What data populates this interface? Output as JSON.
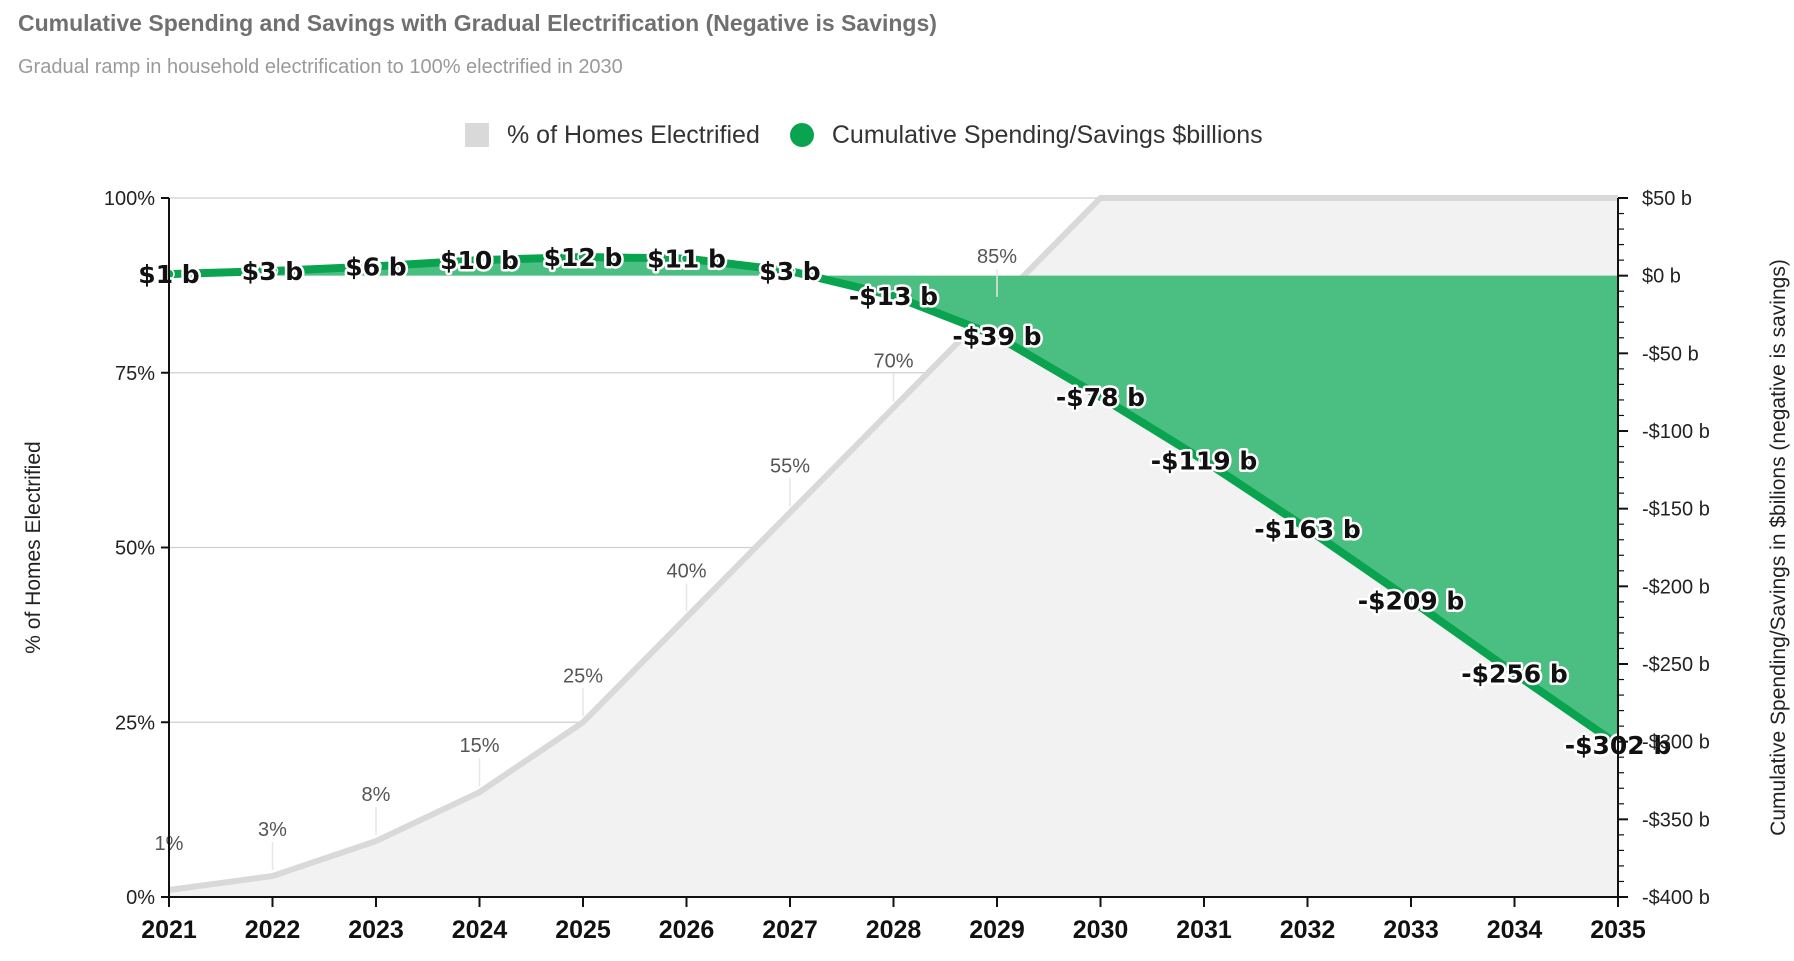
{
  "header": {
    "title": "Cumulative Spending and Savings with Gradual Electrification (Negative is Savings)",
    "subtitle": "Gradual ramp in household electrification to 100% electrified in 2030"
  },
  "legend": [
    {
      "name": "% of Homes Electrified",
      "color": "#d9d9d9",
      "shape": "square"
    },
    {
      "name": "Cumulative Spending/Savings $billions",
      "color": "#0aa350",
      "shape": "circle"
    }
  ],
  "chart_data": {
    "type": "area",
    "categories": [
      "2021",
      "2022",
      "2023",
      "2024",
      "2025",
      "2026",
      "2027",
      "2028",
      "2029",
      "2030",
      "2031",
      "2032",
      "2033",
      "2034",
      "2035"
    ],
    "series": [
      {
        "name": "% of Homes Electrified",
        "axis": "left",
        "type": "area",
        "color": "#d9d9d9",
        "values": [
          1,
          3,
          8,
          15,
          25,
          40,
          55,
          70,
          85,
          100,
          100,
          100,
          100,
          100,
          100
        ],
        "value_labels": [
          "1%",
          "3%",
          "8%",
          "15%",
          "25%",
          "40%",
          "55%",
          "70%",
          "85%",
          null,
          null,
          null,
          null,
          null,
          null
        ]
      },
      {
        "name": "Cumulative Spending/Savings $billions",
        "axis": "right",
        "type": "area",
        "color": "#0aa350",
        "values": [
          1,
          3,
          6,
          10,
          12,
          11,
          3,
          -13,
          -39,
          -78,
          -119,
          -163,
          -209,
          -256,
          -302
        ],
        "value_labels": [
          "$1 b",
          "$3 b",
          "$6 b",
          "$10 b",
          "$12 b",
          "$11 b",
          "$3 b",
          "-$13 b",
          "-$39 b",
          "-$78 b",
          "-$119 b",
          "-$163 b",
          "-$209 b",
          "-$256 b",
          "-$302 b"
        ]
      }
    ],
    "y_left": {
      "label": "% of Homes Electrified",
      "range": [
        0,
        100
      ],
      "ticks": [
        0,
        25,
        50,
        75,
        100
      ],
      "tick_labels": [
        "0%",
        "25%",
        "50%",
        "75%",
        "100%"
      ]
    },
    "y_right": {
      "label": "Cumulative Spending/Savings in $bilions (negative is savings)",
      "range": [
        -400,
        50
      ],
      "ticks": [
        50,
        0,
        -50,
        -100,
        -150,
        -200,
        -250,
        -300,
        -350,
        -400
      ],
      "tick_labels": [
        "$50 b",
        "$0 b",
        "-$50 b",
        "-$100 b",
        "-$150 b",
        "-$200 b",
        "-$250 b",
        "-$300 b",
        "-$350 b",
        "-$400 b"
      ]
    },
    "grid": true,
    "legend_position": "top-center"
  }
}
